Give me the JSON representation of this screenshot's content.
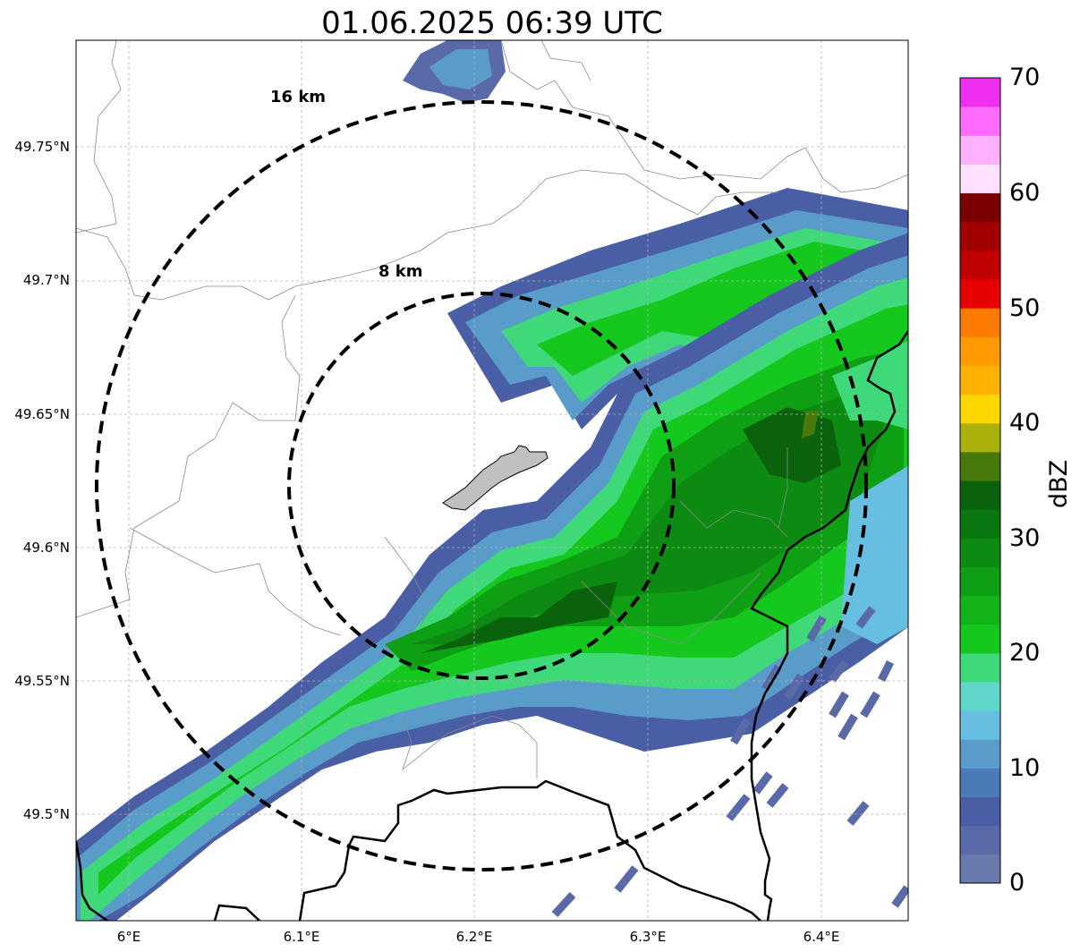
{
  "title": "01.06.2025 06:39 UTC",
  "map": {
    "lon_range": [
      5.97,
      6.45
    ],
    "lat_range": [
      49.46,
      49.79
    ],
    "lat_ticks": [
      "49.75°N",
      "49.7°N",
      "49.65°N",
      "49.6°N",
      "49.55°N",
      "49.5°N"
    ],
    "lon_ticks": [
      "6°E",
      "6.1°E",
      "6.2°E",
      "6.3°E",
      "6.4°E"
    ],
    "grid": true,
    "range_rings": [
      {
        "label": "8 km",
        "radius_km": 8
      },
      {
        "label": "16 km",
        "radius_km": 16
      }
    ],
    "radar_center": {
      "lon": 6.2,
      "lat": 49.622
    }
  },
  "colorbar": {
    "label": "dBZ",
    "min": 0,
    "max": 70,
    "ticks": [
      "0",
      "10",
      "20",
      "30",
      "40",
      "50",
      "60",
      "70"
    ],
    "colors": [
      "#6a7aad",
      "#5a6aa8",
      "#4a5ea5",
      "#4a7ab8",
      "#5a9cc9",
      "#66bfe0",
      "#5fd6c8",
      "#3fd97a",
      "#15c81e",
      "#12b418",
      "#0f9f15",
      "#0c8a12",
      "#0a7610",
      "#0a620d",
      "#477a0b",
      "#aab10a",
      "#ffd700",
      "#ffb300",
      "#ff9a00",
      "#ff7a00",
      "#e60000",
      "#c00000",
      "#a00000",
      "#7a0000",
      "#ffe0ff",
      "#ffb0ff",
      "#ff6aff",
      "#f030f0"
    ]
  }
}
